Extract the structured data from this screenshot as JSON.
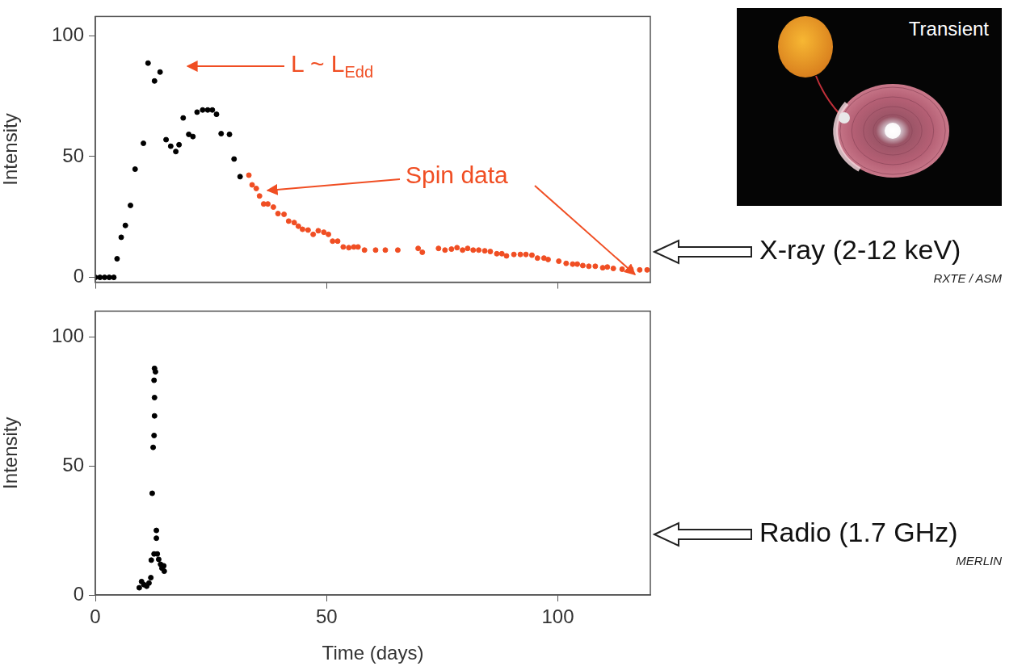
{
  "chart_data": [
    {
      "type": "scatter",
      "y_label": "Intensity",
      "xlim": [
        0,
        120
      ],
      "xticks": [
        0,
        50,
        100
      ],
      "ylim": [
        -2,
        108
      ],
      "yticks": [
        0,
        50,
        100
      ],
      "grid": false,
      "tick_labels": "y",
      "series": [
        {
          "color": "#000000",
          "marker": "circle",
          "x": [
            0,
            1,
            2,
            3,
            4,
            4.7,
            5.6,
            6.5,
            7.6,
            8.6,
            10.4,
            11.4,
            12.8,
            14.0,
            15.3,
            16.3,
            17.4,
            18.1,
            19.0,
            20.2,
            21.1,
            22.0,
            23.2,
            24.3,
            25.3,
            26.2,
            27.2,
            29.0,
            30.0,
            31.3
          ],
          "values": [
            0,
            0,
            0,
            0,
            0,
            7.7,
            16.6,
            21.5,
            29.8,
            44.8,
            55.5,
            88.7,
            81.3,
            85.0,
            57.0,
            54.3,
            52.1,
            54.9,
            66.0,
            59.2,
            58.3,
            68.4,
            69.3,
            69.3,
            69.3,
            67.5,
            59.5,
            59.2,
            49.0,
            41.7
          ]
        },
        {
          "color": "#f04e23",
          "marker": "circle",
          "x": [
            33.2,
            33.9,
            34.8,
            35.5,
            36.4,
            37.3,
            38.5,
            39.5,
            40.8,
            41.8,
            43.0,
            43.9,
            44.8,
            46.0,
            47.1,
            48.2,
            49.4,
            50.4,
            51.3,
            52.4,
            53.6,
            54.8,
            55.9,
            56.8,
            58.2,
            60.6,
            62.7,
            65.4,
            69.8,
            70.7,
            74.2,
            75.6,
            77.0,
            78.2,
            79.4,
            80.5,
            81.7,
            82.9,
            84.2,
            85.4,
            86.8,
            87.9,
            88.9,
            90.5,
            91.9,
            93.1,
            94.4,
            95.6,
            97.0,
            97.9,
            100.2,
            101.8,
            103.2,
            104.2,
            105.4,
            106.7,
            108.1,
            109.7,
            110.7,
            112.0,
            113.9,
            115.8,
            117.7,
            119.3
          ],
          "values": [
            42.3,
            38.3,
            36.8,
            33.7,
            30.4,
            30.4,
            29.1,
            26.4,
            26.1,
            23.3,
            22.7,
            21.2,
            19.9,
            19.6,
            17.8,
            19.3,
            18.7,
            17.8,
            15.0,
            15.0,
            12.6,
            12.3,
            12.6,
            12.6,
            11.3,
            11.3,
            11.3,
            11.3,
            12.0,
            10.4,
            12.0,
            11.3,
            11.7,
            12.3,
            11.3,
            12.0,
            11.3,
            11.3,
            11.0,
            10.7,
            9.8,
            9.8,
            8.9,
            9.5,
            9.5,
            9.5,
            9.2,
            8.0,
            8.0,
            7.4,
            6.7,
            5.8,
            5.5,
            5.5,
            4.9,
            4.6,
            4.6,
            4.0,
            4.3,
            3.7,
            3.4,
            3.4,
            3.1,
            3.1
          ]
        }
      ],
      "annotations": [
        {
          "text": "L ~ L",
          "subscript": "Edd",
          "color": "#f04e23"
        },
        {
          "text": "Spin data",
          "color": "#f04e23"
        }
      ],
      "side_label": {
        "text": "X-ray (2-12 keV)",
        "instrument": "RXTE / ASM"
      }
    },
    {
      "type": "scatter",
      "x_label": "Time (days)",
      "y_label": "Intensity",
      "xlim": [
        0,
        120
      ],
      "xticks": [
        0,
        50,
        100
      ],
      "ylim": [
        0,
        110
      ],
      "yticks": [
        0,
        50,
        100
      ],
      "grid": false,
      "tick_labels": true,
      "series": [
        {
          "color": "#000000",
          "marker": "circle",
          "x": [
            9.5,
            10.0,
            10.5,
            11.1,
            11.6,
            12.0,
            12.1,
            12.3,
            12.5,
            12.7,
            12.8,
            12.8,
            12.7,
            12.8,
            13.0,
            13.2,
            13.2,
            13.4,
            12.7,
            13.7,
            14.1,
            14.4,
            14.9,
            14.8
          ],
          "values": [
            2.8,
            5.2,
            4.0,
            3.4,
            4.6,
            6.7,
            13.5,
            39.4,
            57.2,
            61.8,
            69.4,
            76.5,
            83.2,
            87.8,
            86.5,
            25.0,
            22.0,
            15.9,
            15.9,
            13.8,
            11.9,
            10.4,
            9.2,
            11.3
          ]
        }
      ],
      "side_label": {
        "text": "Radio (1.7 GHz)",
        "instrument": "MERLIN"
      }
    }
  ],
  "inset": {
    "label": "Transient"
  }
}
